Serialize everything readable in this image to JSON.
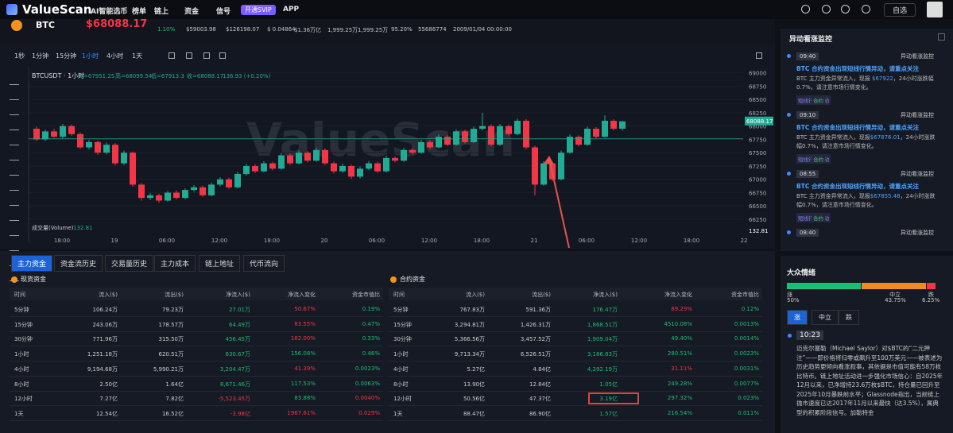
{
  "nav": {
    "logo": "ValueScan",
    "items": [
      "AI智能选币",
      "榜单",
      "链上",
      "资金",
      "信号"
    ],
    "vip": "开通SVIP",
    "app": "APP",
    "watch": "自选"
  },
  "ticker": {
    "symbol": "BTC",
    "price": "$68088.17",
    "stats": [
      "1.10%",
      "$59003.98",
      "$126198.07",
      "$ 0.04864",
      "$1.36万亿",
      "1,999.25万",
      "1,999.25万",
      "95.20%",
      "55686774",
      "2009/01/04 00:00:00"
    ]
  },
  "chart": {
    "intervals": [
      "1秒",
      "1分钟",
      "15分钟",
      "1小时",
      "4小时",
      "1天"
    ],
    "active_interval": 3,
    "pair": "BTCUSDT · 1小时",
    "ohlc": [
      "开=67951.25",
      "高=68099.54",
      "低=67913.3",
      "收=68088.17"
    ],
    "change": "136.93 (+0.20%)",
    "watermark": "ValueScan",
    "volume_label": "成交量(Volume)",
    "volume_value": "132.81",
    "last_price": "68088.17",
    "ylim": [
      66040,
      69100
    ],
    "yticks": [
      69000,
      68750,
      68500,
      68250,
      68000,
      67750,
      67500,
      67250,
      67000,
      66750,
      66500,
      66250
    ],
    "xlabels": [
      "18:00",
      "19",
      "06:00",
      "12:00",
      "18:00",
      "20",
      "06:00",
      "12:00",
      "18:00",
      "21",
      "06:00",
      "12:00",
      "18:00",
      "22"
    ],
    "candles": [
      [
        67950,
        67990,
        67720,
        67750
      ],
      [
        67750,
        67930,
        67720,
        67900
      ],
      [
        67900,
        67950,
        67780,
        67800
      ],
      [
        67800,
        68040,
        67770,
        68000
      ],
      [
        68000,
        68030,
        67820,
        67850
      ],
      [
        67850,
        67880,
        67570,
        67600
      ],
      [
        67600,
        67740,
        67560,
        67700
      ],
      [
        67700,
        67730,
        67460,
        67500
      ],
      [
        67500,
        67690,
        67470,
        67650
      ],
      [
        67650,
        67680,
        67260,
        67300
      ],
      [
        67300,
        67540,
        67270,
        67500
      ],
      [
        67500,
        67520,
        66860,
        66900
      ],
      [
        66900,
        66930,
        66600,
        66650
      ],
      [
        66650,
        66740,
        66610,
        66700
      ],
      [
        66700,
        66730,
        66560,
        66600
      ],
      [
        66600,
        66780,
        66580,
        66750
      ],
      [
        66750,
        66790,
        66620,
        66650
      ],
      [
        66650,
        66830,
        66630,
        66800
      ],
      [
        66800,
        66890,
        66770,
        66850
      ],
      [
        66850,
        66880,
        66670,
        66700
      ],
      [
        66700,
        66940,
        66680,
        66900
      ],
      [
        66900,
        67040,
        66870,
        67000
      ],
      [
        67000,
        67030,
        66820,
        66850
      ],
      [
        66850,
        67140,
        66830,
        67100
      ],
      [
        67100,
        67290,
        67070,
        67250
      ],
      [
        67250,
        67280,
        67120,
        67150
      ],
      [
        67150,
        67340,
        67130,
        67300
      ],
      [
        67300,
        67330,
        67170,
        67200
      ],
      [
        67200,
        67490,
        67180,
        67450
      ],
      [
        67450,
        67480,
        67270,
        67300
      ],
      [
        67300,
        67540,
        67280,
        67500
      ],
      [
        67500,
        67530,
        67320,
        67350
      ],
      [
        67350,
        67590,
        67330,
        67550
      ],
      [
        67550,
        67580,
        67270,
        67300
      ],
      [
        67300,
        67330,
        67110,
        67150
      ],
      [
        67150,
        67290,
        67120,
        67250
      ],
      [
        67250,
        67280,
        67010,
        67050
      ],
      [
        67050,
        67240,
        67020,
        67200
      ],
      [
        67200,
        67340,
        67170,
        67300
      ],
      [
        67300,
        67330,
        67120,
        67150
      ],
      [
        67150,
        67440,
        67130,
        67400
      ],
      [
        67400,
        67430,
        67320,
        67350
      ],
      [
        67350,
        67590,
        67330,
        67550
      ],
      [
        67550,
        67580,
        67470,
        67500
      ],
      [
        67500,
        67740,
        67480,
        67700
      ],
      [
        67700,
        67730,
        67570,
        67600
      ],
      [
        67600,
        67840,
        67580,
        67800
      ],
      [
        67800,
        67830,
        67620,
        67650
      ],
      [
        67650,
        67940,
        67630,
        67900
      ],
      [
        67900,
        67930,
        67670,
        67700
      ],
      [
        67700,
        67990,
        67680,
        67950
      ],
      [
        67950,
        68250,
        67920,
        68000
      ],
      [
        68000,
        68030,
        67620,
        67650
      ],
      [
        67650,
        68040,
        67630,
        68000
      ],
      [
        68000,
        68030,
        67820,
        67850
      ],
      [
        67850,
        68140,
        67830,
        68100
      ],
      [
        68100,
        68130,
        67560,
        67600
      ],
      [
        67600,
        67630,
        66700,
        66900
      ],
      [
        66900,
        67340,
        66880,
        67300
      ],
      [
        67300,
        67330,
        66970,
        67000
      ],
      [
        67000,
        67540,
        66980,
        67500
      ],
      [
        67500,
        67840,
        67480,
        67800
      ],
      [
        67800,
        67830,
        67620,
        67650
      ],
      [
        67650,
        67990,
        67630,
        67950
      ],
      [
        67950,
        67980,
        67770,
        67800
      ],
      [
        67800,
        68200,
        67780,
        68100
      ],
      [
        68100,
        68130,
        67920,
        67950
      ],
      [
        67951.25,
        68099.54,
        67913.3,
        68088.17
      ]
    ]
  },
  "tabs": {
    "items": [
      "主力资金",
      "资金流历史",
      "交易量历史",
      "主力成本",
      "链上地址",
      "代币流向"
    ],
    "active": 0
  },
  "tables": [
    {
      "title": "现货资金",
      "headers": [
        "时间",
        "流入($)",
        "流出($)",
        "净流入($)",
        "净流入变化",
        "资金市值比"
      ],
      "rows": [
        [
          "5分钟",
          "106.24万",
          "79.23万",
          "27.01万",
          "50.67%",
          "0.19%"
        ],
        [
          "15分钟",
          "243.06万",
          "178.57万",
          "64.49万",
          "83.55%",
          "0.47%"
        ],
        [
          "30分钟",
          "771.96万",
          "315.50万",
          "456.45万",
          "162.00%",
          "0.33%"
        ],
        [
          "1小时",
          "1,251.18万",
          "620.51万",
          "630.67万",
          "156.08%",
          "0.46%"
        ],
        [
          "4小时",
          "9,194.68万",
          "5,990.21万",
          "3,204.47万",
          "41.39%",
          "0.0023%"
        ],
        [
          "8小时",
          "2.50亿",
          "1.64亿",
          "8,671.46万",
          "117.53%",
          "0.0063%"
        ],
        [
          "12小时",
          "7.27亿",
          "7.82亿",
          "-5,523.45万",
          "83.88%",
          "0.0040%"
        ],
        [
          "1天",
          "12.54亿",
          "16.52亿",
          "-3.98亿",
          "1967.61%",
          "0.029%"
        ]
      ],
      "net_colors": [
        "up",
        "up",
        "up",
        "up",
        "up",
        "up",
        "down",
        "down"
      ],
      "change_colors": [
        "down",
        "down",
        "down",
        "up",
        "down",
        "up",
        "up",
        "down"
      ],
      "ratio_colors": [
        "up",
        "up",
        "up",
        "up",
        "up",
        "up",
        "down",
        "down"
      ]
    },
    {
      "title": "合约资金",
      "headers": [
        "时间",
        "流入($)",
        "流出($)",
        "净流入($)",
        "净流入变化",
        "资金市值比"
      ],
      "rows": [
        [
          "5分钟",
          "767.83万",
          "591.36万",
          "176.47万",
          "89.29%",
          "0.12%"
        ],
        [
          "15分钟",
          "3,294.81万",
          "1,426.31万",
          "1,868.51万",
          "4510.08%",
          "0.0013%"
        ],
        [
          "30分钟",
          "5,366.56万",
          "3,457.52万",
          "1,909.04万",
          "49.40%",
          "0.0014%"
        ],
        [
          "1小时",
          "9,713.34万",
          "6,526.51万",
          "3,186.83万",
          "280.51%",
          "0.0023%"
        ],
        [
          "4小时",
          "5.27亿",
          "4.84亿",
          "4,292.19万",
          "31.11%",
          "0.0031%"
        ],
        [
          "8小时",
          "13.90亿",
          "12.84亿",
          "1.05亿",
          "249.28%",
          "0.0077%"
        ],
        [
          "12小时",
          "50.56亿",
          "47.37亿",
          "3.19亿",
          "297.32%",
          "0.023%"
        ],
        [
          "1天",
          "88.47亿",
          "86.90亿",
          "1.57亿",
          "216.54%",
          "0.011%"
        ]
      ],
      "net_colors": [
        "up",
        "up",
        "up",
        "up",
        "up",
        "up",
        "up",
        "up"
      ],
      "change_colors": [
        "down",
        "up",
        "up",
        "up",
        "down",
        "up",
        "up",
        "up"
      ],
      "ratio_colors": [
        "up",
        "up",
        "up",
        "up",
        "up",
        "up",
        "up",
        "up"
      ]
    }
  ],
  "monitor": {
    "title": "异动看涨监控",
    "cards": [
      {
        "time": "09:40",
        "tag": "异动看涨监控",
        "title": "BTC 合约资金出现短线行情异动，请重点关注",
        "body_pre": "BTC 主力资金异常流入，现报 ",
        "price": "$67922",
        "body_post": "，24小时涨跌幅0.7%，请注意市场行情变化。",
        "tags": [
          "短线行情异动",
          "合约"
        ]
      },
      {
        "time": "09:10",
        "tag": "异动看涨监控",
        "title": "BTC 合约资金出现短线行情异动，请重点关注",
        "body_pre": "BTC 主力资金异常流入，现报",
        "price": "$67876.01",
        "body_post": "，24小时涨跌幅0.7%，请注意市场行情变化。",
        "tags": [
          "短线行情异动",
          "合约"
        ]
      },
      {
        "time": "08:55",
        "tag": "异动看涨监控",
        "title": "BTC 合约资金出现短线行情异动，请重点关注",
        "body_pre": "BTC 主力资金异常流入，现报",
        "price": "$67855.48",
        "body_post": "，24小时涨跌幅0.7%，请注意市场行情变化。",
        "tags": [
          "短线行情异动",
          "合约"
        ]
      },
      {
        "time": "08:40",
        "tag": "异动看涨监控"
      }
    ]
  },
  "sentiment": {
    "title": "大众情绪",
    "items": [
      {
        "label": "涨",
        "value": 50,
        "value_label": "50%"
      },
      {
        "label": "中立",
        "value": 43.75,
        "value_label": "43.75%"
      },
      {
        "label": "跌",
        "value": 6.25,
        "value_label": "6.25%"
      }
    ],
    "filters": [
      "涨",
      "中立",
      "跌"
    ],
    "active_filter": 0
  },
  "news": {
    "time": "10:23",
    "text": "迈克尔塞勒（Michael Saylor）对$BTC的“二元押注”——即价格将归零或飙升至100万美元——被表述为历史趋势更倾向看涨叙事，其依据是市值可能有58万枚比特币。链上地址活动进一步强化市场信心：自2025年12月以来，已净增持23.6万枚$BTC，持仓量已回升至2025年10月暴跌前水平；Glassnode指出，当前链上抛市速度已达2017年11月以来最快（达3.5%），属典型的积累阶段信号。加勒特金"
  }
}
